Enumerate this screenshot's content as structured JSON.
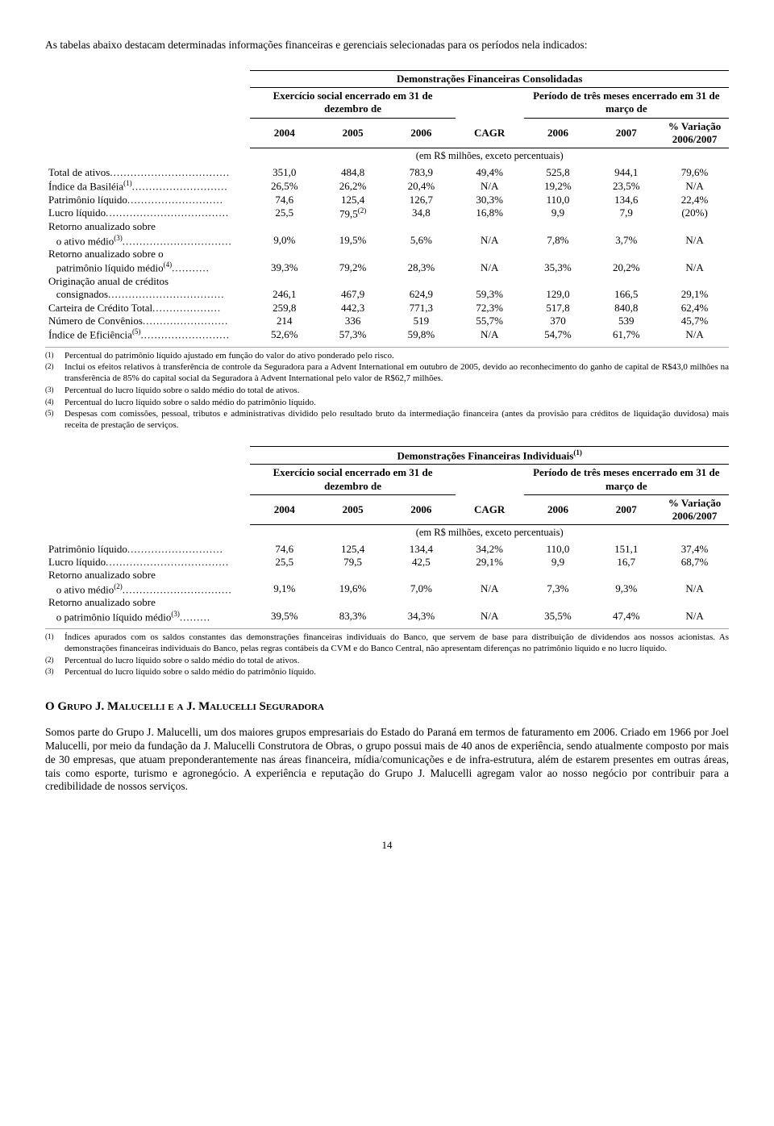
{
  "intro": "As tabelas abaixo destacam determinadas informações financeiras e gerenciais selecionadas para os períodos nela indicados:",
  "table1": {
    "title": "Demonstrações Financeiras Consolidadas",
    "sub_left": "Exercício social encerrado em 31 de dezembro de",
    "sub_right": "Período de três meses encerrado em 31 de março de",
    "var_label": "% Variação 2006/2007",
    "year_2004": "2004",
    "year_2005": "2005",
    "year_2006a": "2006",
    "cagr": "CAGR",
    "year_2006b": "2006",
    "year_2007": "2007",
    "units": "(em R$ milhões, exceto percentuais)",
    "rows": [
      {
        "label": "Total de ativos",
        "sup": "",
        "dots": "...................................",
        "v": [
          "351,0",
          "484,8",
          "783,9",
          "49,4%",
          "525,8",
          "944,1",
          "79,6%"
        ]
      },
      {
        "label": "Índice da Basiléia",
        "sup": "(1)",
        "dots": "............................",
        "v": [
          "26,5%",
          "26,2%",
          "20,4%",
          "N/A",
          "19,2%",
          "23,5%",
          "N/A"
        ]
      },
      {
        "label": "Patrimônio líquido",
        "sup": "",
        "dots": "............................",
        "v": [
          "74,6",
          "125,4",
          "126,7",
          "30,3%",
          "110,0",
          "134,6",
          "22,4%"
        ]
      },
      {
        "label": "Lucro líquido",
        "sup": "",
        "dots": "....................................",
        "v": [
          "25,5",
          "79,5",
          "34,8",
          "16,8%",
          "9,9",
          "7,9",
          "(20%)"
        ],
        "v1sup": "(2)"
      },
      {
        "label": "Retorno anualizado sobre",
        "sup": "",
        "dots": "",
        "v": [
          "",
          "",
          "",
          "",
          "",
          "",
          ""
        ]
      },
      {
        "label": "   o ativo médio",
        "sup": "(3)",
        "dots": "................................",
        "v": [
          "9,0%",
          "19,5%",
          "5,6%",
          "N/A",
          "7,8%",
          "3,7%",
          "N/A"
        ]
      },
      {
        "label": "Retorno anualizado sobre o",
        "sup": "",
        "dots": "",
        "v": [
          "",
          "",
          "",
          "",
          "",
          "",
          ""
        ]
      },
      {
        "label": "   patrimônio líquido médio",
        "sup": "(4)",
        "dots": "...........",
        "v": [
          "39,3%",
          "79,2%",
          "28,3%",
          "N/A",
          "35,3%",
          "20,2%",
          "N/A"
        ]
      },
      {
        "label": "Originação anual de créditos",
        "sup": "",
        "dots": "",
        "v": [
          "",
          "",
          "",
          "",
          "",
          "",
          ""
        ]
      },
      {
        "label": "   consignados",
        "sup": "",
        "dots": "..................................",
        "v": [
          "246,1",
          "467,9",
          "624,9",
          "59,3%",
          "129,0",
          "166,5",
          "29,1%"
        ]
      },
      {
        "label": "Carteira de Crédito Total",
        "sup": "",
        "dots": "....................",
        "v": [
          "259,8",
          "442,3",
          "771,3",
          "72,3%",
          "517,8",
          "840,8",
          "62,4%"
        ]
      },
      {
        "label": "Número de Convênios",
        "sup": "",
        "dots": ".........................",
        "v": [
          "214",
          "336",
          "519",
          "55,7%",
          "370",
          "539",
          "45,7%"
        ]
      },
      {
        "label": "Índice de Eficiência",
        "sup": "(5)",
        "dots": "..........................",
        "v": [
          "52,6%",
          "57,3%",
          "59,8%",
          "N/A",
          "54,7%",
          "61,7%",
          "N/A"
        ]
      }
    ],
    "footnotes": [
      {
        "mark": "(1)",
        "text": "Percentual do patrimônio líquido ajustado em função do valor do ativo ponderado pelo risco."
      },
      {
        "mark": "(2)",
        "text": "Inclui os efeitos relativos à transferência de controle da Seguradora para a Advent International em outubro de 2005, devido ao reconhecimento do ganho de capital de R$43,0 milhões na transferência de 85% do capital social da Seguradora à Advent International pelo valor de R$62,7 milhões."
      },
      {
        "mark": "(3)",
        "text": "Percentual do lucro líquido sobre o saldo médio do total de ativos."
      },
      {
        "mark": "(4)",
        "text": "Percentual do lucro líquido sobre o saldo médio do patrimônio líquido."
      },
      {
        "mark": "(5)",
        "text": "Despesas com comissões, pessoal, tributos e administrativas dividido pelo resultado bruto da intermediação financeira (antes da provisão para créditos de liquidação duvidosa) mais receita de prestação de serviços."
      }
    ]
  },
  "table2": {
    "title": "Demonstrações Financeiras Individuais",
    "title_sup": "(1)",
    "sub_left": "Exercício social encerrado em 31 de dezembro de",
    "sub_right": "Período de três meses encerrado em 31 de março de",
    "var_label": "% Variação 2006/2007",
    "year_2004": "2004",
    "year_2005": "2005",
    "year_2006a": "2006",
    "cagr": "CAGR",
    "year_2006b": "2006",
    "year_2007": "2007",
    "units": "(em R$ milhões, exceto percentuais)",
    "rows": [
      {
        "label": "Patrimônio líquido",
        "sup": "",
        "dots": "............................",
        "v": [
          "74,6",
          "125,4",
          "134,4",
          "34,2%",
          "110,0",
          "151,1",
          "37,4%"
        ]
      },
      {
        "label": "Lucro líquido",
        "sup": "",
        "dots": "....................................",
        "v": [
          "25,5",
          "79,5",
          "42,5",
          "29,1%",
          "9,9",
          "16,7",
          "68,7%"
        ]
      },
      {
        "label": "Retorno anualizado sobre",
        "sup": "",
        "dots": "",
        "v": [
          "",
          "",
          "",
          "",
          "",
          "",
          ""
        ]
      },
      {
        "label": "   o ativo médio",
        "sup": "(2)",
        "dots": "................................",
        "v": [
          "9,1%",
          "19,6%",
          "7,0%",
          "N/A",
          "7,3%",
          "9,3%",
          "N/A"
        ]
      },
      {
        "label": "Retorno anualizado sobre",
        "sup": "",
        "dots": "",
        "v": [
          "",
          "",
          "",
          "",
          "",
          "",
          ""
        ]
      },
      {
        "label": "   o patrimônio líquido médio",
        "sup": "(3)",
        "dots": ".........",
        "v": [
          "39,5%",
          "83,3%",
          "34,3%",
          "N/A",
          "35,5%",
          "47,4%",
          "N/A"
        ]
      }
    ],
    "footnotes": [
      {
        "mark": "(1)",
        "text": "Índices apurados com os saldos constantes das demonstrações financeiras individuais do Banco, que servem de base para distribuição de dividendos aos nossos acionistas. As demonstrações financeiras individuais do Banco, pelas regras contábeis da CVM e do Banco Central, não apresentam diferenças no patrimônio líquido e no lucro líquido."
      },
      {
        "mark": "(2)",
        "text": "Percentual do lucro líquido sobre o saldo médio do total de ativos."
      },
      {
        "mark": "(3)",
        "text": "Percentual do lucro líquido sobre o saldo médio do patrimônio líquido."
      }
    ]
  },
  "section_heading": "O Grupo J. Malucelli e a J. Malucelli Seguradora",
  "body": "Somos parte do Grupo J. Malucelli, um dos maiores grupos empresariais do Estado do Paraná em termos de faturamento em 2006. Criado em 1966 por Joel Malucelli, por meio da fundação da J. Malucelli Construtora de Obras, o grupo possui mais de 40 anos de experiência, sendo atualmente composto por mais de 30 empresas, que atuam preponderantemente nas áreas financeira, mídia/comunicações e de infra-estrutura, além de estarem presentes em outras áreas, tais como esporte, turismo e agronegócio. A experiência e reputação do Grupo J. Malucelli agregam valor ao nosso negócio por contribuir para a credibilidade de nossos serviços.",
  "page_number": "14"
}
